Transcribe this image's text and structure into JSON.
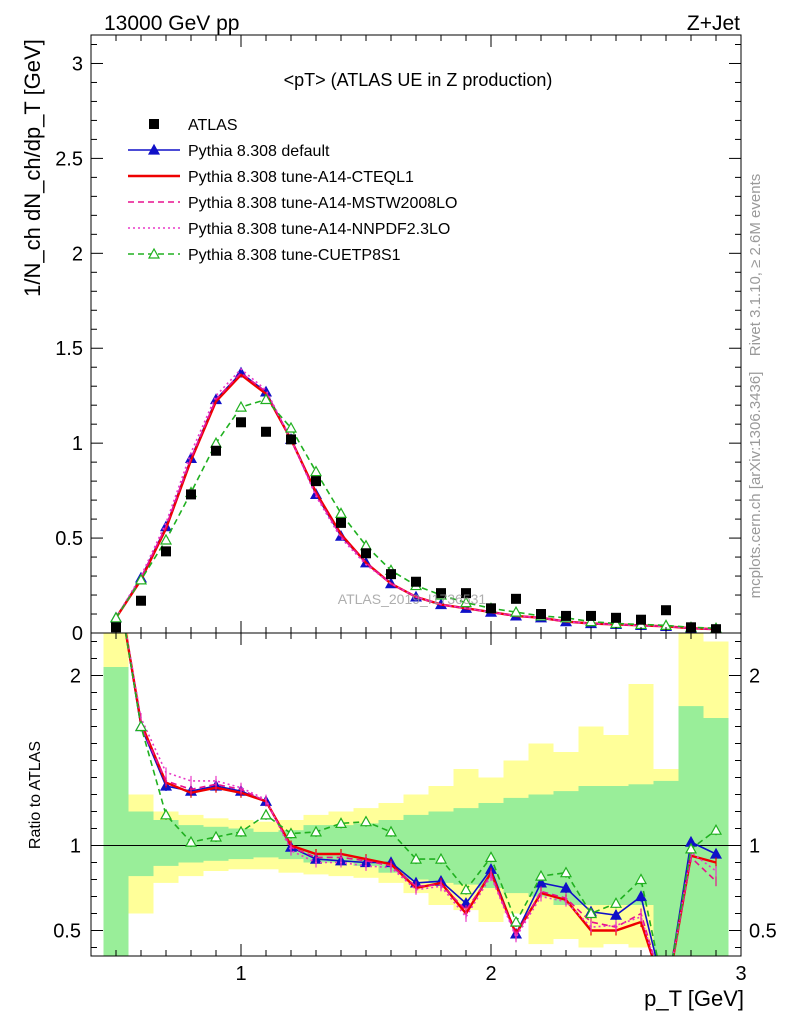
{
  "header": {
    "left": "13000 GeV pp",
    "right": "Z+Jet"
  },
  "side_labels": {
    "rivet": "Rivet 3.1.10, ≥ 2.6M events",
    "mcplots": "mcplots.cern.ch [arXiv:1306.3436]"
  },
  "chart_data": {
    "type": "line",
    "title": "<pT> (ATLAS UE in Z production)",
    "watermark": "ATLAS_2019_I1736531",
    "xlabel": "p_T [GeV]",
    "ylabel": "1/N_ch dN_ch/dp_T [GeV]",
    "ratio_ylabel": "Ratio to ATLAS",
    "xlim": [
      0.4,
      3.0
    ],
    "ylim": [
      0,
      3.15
    ],
    "ratio_ylim": [
      0.35,
      2.25
    ],
    "x_ticks": [
      1,
      2,
      3
    ],
    "y_ticks": [
      0,
      0.5,
      1,
      1.5,
      2,
      2.5,
      3
    ],
    "y_tick_labels": [
      "0",
      "0.5",
      "1",
      "1.5",
      "2",
      "2.5",
      "3"
    ],
    "ratio_ticks": [
      0.5,
      1,
      2
    ],
    "ratio_tick_labels": [
      "0.5",
      "1",
      "2"
    ],
    "x": [
      0.5,
      0.6,
      0.7,
      0.8,
      0.9,
      1.0,
      1.1,
      1.2,
      1.3,
      1.4,
      1.5,
      1.6,
      1.7,
      1.8,
      1.9,
      2.0,
      2.1,
      2.2,
      2.3,
      2.4,
      2.5,
      2.6,
      2.7,
      2.8,
      2.9
    ],
    "data": {
      "name": "ATLAS",
      "values": [
        0.03,
        0.17,
        0.43,
        0.73,
        0.96,
        1.11,
        1.06,
        1.02,
        0.8,
        0.58,
        0.42,
        0.31,
        0.27,
        0.21,
        0.21,
        0.13,
        0.18,
        0.1,
        0.09,
        0.09,
        0.08,
        0.07,
        0.12,
        0.03,
        0.02
      ]
    },
    "series": [
      {
        "name": "Pythia 8.308 default",
        "color": "#1010c8",
        "style": "solid",
        "marker": "triangle-filled",
        "values": [
          0.08,
          0.29,
          0.56,
          0.92,
          1.23,
          1.37,
          1.27,
          1.02,
          0.73,
          0.51,
          0.37,
          0.26,
          0.19,
          0.15,
          0.13,
          0.11,
          0.09,
          0.08,
          0.06,
          0.05,
          0.045,
          0.04,
          0.035,
          0.025,
          0.02
        ],
        "ratio": [
          2.6,
          1.7,
          1.35,
          1.32,
          1.35,
          1.32,
          1.26,
          0.99,
          0.92,
          0.91,
          0.9,
          0.9,
          0.78,
          0.79,
          0.66,
          0.86,
          0.48,
          0.78,
          0.75,
          0.61,
          0.59,
          0.7,
          0.1,
          1.02,
          0.95
        ]
      },
      {
        "name": "Pythia 8.308 tune-A14-CTEQL1",
        "color": "#ee0000",
        "style": "solid",
        "marker": "none",
        "values": [
          0.08,
          0.28,
          0.55,
          0.91,
          1.22,
          1.36,
          1.26,
          1.02,
          0.74,
          0.52,
          0.37,
          0.26,
          0.19,
          0.15,
          0.13,
          0.11,
          0.09,
          0.08,
          0.06,
          0.05,
          0.045,
          0.04,
          0.035,
          0.025,
          0.02
        ],
        "ratio": [
          2.6,
          1.72,
          1.37,
          1.31,
          1.34,
          1.31,
          1.26,
          1.0,
          0.95,
          0.95,
          0.92,
          0.89,
          0.75,
          0.78,
          0.6,
          0.84,
          0.48,
          0.72,
          0.68,
          0.5,
          0.5,
          0.55,
          0.1,
          0.94,
          0.9
        ]
      },
      {
        "name": "Pythia 8.308 tune-A14-MSTW2008LO",
        "color": "#e8108e",
        "style": "dashed",
        "marker": "none",
        "values": [
          0.08,
          0.29,
          0.56,
          0.92,
          1.23,
          1.37,
          1.27,
          1.02,
          0.73,
          0.51,
          0.37,
          0.26,
          0.19,
          0.15,
          0.13,
          0.11,
          0.09,
          0.08,
          0.06,
          0.05,
          0.045,
          0.04,
          0.035,
          0.025,
          0.02
        ],
        "ratio": [
          2.6,
          1.7,
          1.38,
          1.33,
          1.36,
          1.33,
          1.26,
          0.99,
          0.93,
          0.93,
          0.91,
          0.88,
          0.76,
          0.77,
          0.62,
          0.83,
          0.47,
          0.73,
          0.69,
          0.55,
          0.52,
          0.6,
          0.1,
          0.93,
          0.79
        ]
      },
      {
        "name": "Pythia 8.308 tune-A14-NNPDF2.3LO",
        "color": "#e838c8",
        "style": "dotted",
        "marker": "none",
        "values": [
          0.08,
          0.3,
          0.58,
          0.95,
          1.25,
          1.39,
          1.28,
          1.02,
          0.72,
          0.5,
          0.36,
          0.26,
          0.19,
          0.15,
          0.13,
          0.11,
          0.09,
          0.08,
          0.06,
          0.05,
          0.045,
          0.04,
          0.035,
          0.025,
          0.02
        ],
        "ratio": [
          2.6,
          1.75,
          1.43,
          1.38,
          1.38,
          1.34,
          1.27,
          0.97,
          0.9,
          0.9,
          0.88,
          0.87,
          0.74,
          0.76,
          0.58,
          0.82,
          0.46,
          0.7,
          0.67,
          0.52,
          0.53,
          0.58,
          0.1,
          0.96,
          0.85
        ]
      },
      {
        "name": "Pythia 8.308 tune-CUETP8S1",
        "color": "#20b020",
        "style": "dashed",
        "marker": "triangle-open",
        "values": [
          0.08,
          0.28,
          0.49,
          0.74,
          1.0,
          1.19,
          1.23,
          1.08,
          0.85,
          0.63,
          0.46,
          0.33,
          0.25,
          0.2,
          0.16,
          0.13,
          0.11,
          0.09,
          0.08,
          0.06,
          0.05,
          0.045,
          0.04,
          0.03,
          0.025
        ],
        "ratio": [
          2.6,
          1.7,
          1.18,
          1.02,
          1.05,
          1.08,
          1.18,
          1.07,
          1.08,
          1.13,
          1.14,
          1.08,
          0.92,
          0.92,
          0.74,
          0.93,
          0.55,
          0.82,
          0.84,
          0.6,
          0.66,
          0.8,
          0.1,
          0.98,
          1.09
        ]
      }
    ],
    "uncertainty_bands": {
      "green_low": [
        0.35,
        0.82,
        0.88,
        0.9,
        0.91,
        0.92,
        0.93,
        0.92,
        0.9,
        0.9,
        0.88,
        0.84,
        0.8,
        0.78,
        0.77,
        0.75,
        0.72,
        0.7,
        0.65,
        0.65,
        0.65,
        0.65,
        0.35,
        0.35,
        0.35
      ],
      "green_high": [
        2.05,
        1.2,
        1.15,
        1.12,
        1.11,
        1.1,
        1.08,
        1.09,
        1.12,
        1.12,
        1.13,
        1.15,
        1.18,
        1.2,
        1.22,
        1.25,
        1.28,
        1.3,
        1.32,
        1.35,
        1.35,
        1.36,
        1.38,
        1.82,
        1.75
      ],
      "yellow_low": [
        0.35,
        0.6,
        0.78,
        0.82,
        0.85,
        0.86,
        0.86,
        0.84,
        0.83,
        0.82,
        0.81,
        0.78,
        0.72,
        0.65,
        0.62,
        0.55,
        0.6,
        0.42,
        0.45,
        0.4,
        0.42,
        0.4,
        0.35,
        0.35,
        0.35
      ],
      "yellow_high": [
        2.25,
        1.3,
        1.2,
        1.18,
        1.16,
        1.15,
        1.14,
        1.15,
        1.18,
        1.2,
        1.22,
        1.25,
        1.3,
        1.35,
        1.45,
        1.4,
        1.5,
        1.6,
        1.55,
        1.7,
        1.65,
        1.95,
        1.45,
        2.25,
        2.2
      ]
    },
    "legend_placement": "top-left"
  }
}
